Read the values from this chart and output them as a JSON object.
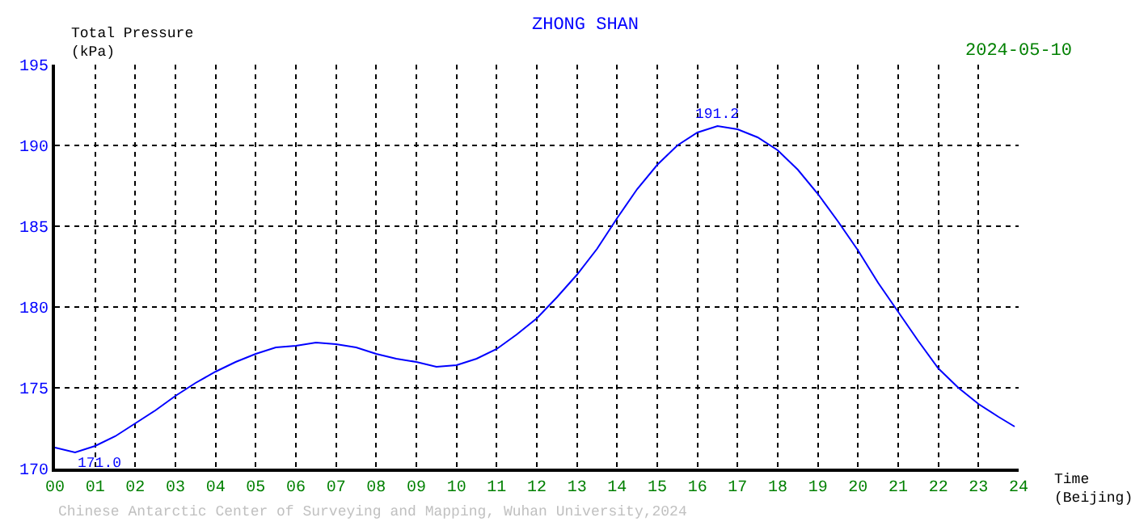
{
  "chart_data": {
    "type": "line",
    "title": "ZHONG SHAN",
    "xlabel": "Time\n(Beijing)",
    "ylabel": "Total Pressure\n(kPa)",
    "x": [
      0,
      0.5,
      1,
      1.5,
      2,
      2.5,
      3,
      3.5,
      4,
      4.5,
      5,
      5.5,
      6,
      6.5,
      7,
      7.5,
      8,
      8.5,
      9,
      9.5,
      10,
      10.5,
      11,
      11.5,
      12,
      12.5,
      13,
      13.5,
      14,
      14.5,
      15,
      15.5,
      16,
      16.5,
      17,
      17.5,
      18,
      18.5,
      19,
      19.5,
      20,
      20.5,
      21,
      21.5,
      22,
      22.5,
      23,
      23.5,
      23.9
    ],
    "series": [
      {
        "color": "#0000ff",
        "values": [
          171.3,
          171.0,
          171.4,
          172.0,
          172.8,
          173.6,
          174.5,
          175.3,
          176.0,
          176.6,
          177.1,
          177.5,
          177.6,
          177.8,
          177.7,
          177.5,
          177.1,
          176.8,
          176.6,
          176.3,
          176.4,
          176.8,
          177.4,
          178.3,
          179.3,
          180.6,
          182.0,
          183.6,
          185.5,
          187.3,
          188.8,
          190.0,
          190.8,
          191.2,
          191.0,
          190.5,
          189.7,
          188.5,
          187.0,
          185.3,
          183.5,
          181.5,
          179.7,
          177.9,
          176.2,
          175.0,
          174.0,
          173.2,
          172.6
        ]
      }
    ],
    "xlim": [
      0,
      24
    ],
    "ylim": [
      170,
      195
    ],
    "xticks": [
      {
        "value": 0,
        "label": "00"
      },
      {
        "value": 1,
        "label": "01"
      },
      {
        "value": 2,
        "label": "02"
      },
      {
        "value": 3,
        "label": "03"
      },
      {
        "value": 4,
        "label": "04"
      },
      {
        "value": 5,
        "label": "05"
      },
      {
        "value": 6,
        "label": "06"
      },
      {
        "value": 7,
        "label": "07"
      },
      {
        "value": 8,
        "label": "08"
      },
      {
        "value": 9,
        "label": "09"
      },
      10,
      11,
      12,
      13,
      14,
      15,
      16,
      17,
      18,
      19,
      20,
      21,
      22,
      23,
      24
    ],
    "yticks": [
      170,
      175,
      180,
      185,
      190,
      195
    ],
    "grid": true,
    "legend": false,
    "marker": "none",
    "line_style": "solid",
    "annotations": [
      {
        "text": "191.2",
        "x": 16.5,
        "y": 191.2
      },
      {
        "text": "171.0",
        "x": 0.5,
        "y": 171.0
      },
      "2024-05-10",
      "Chinese Antarctic Center of Surveying and Mapping, Wuhan University,2024"
    ]
  }
}
